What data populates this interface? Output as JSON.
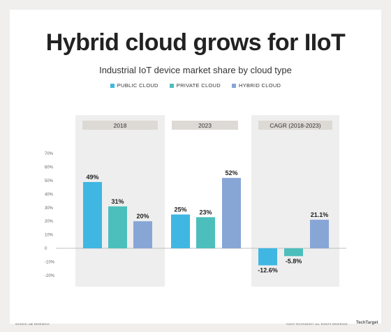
{
  "header": {
    "title": "Hybrid cloud grows for IIoT",
    "subtitle": "Industrial IoT device market share by cloud type"
  },
  "footer": {
    "source": "SOURCE: ABI RESEARCH",
    "copyright": "©2023 TECHTARGET. ALL RIGHTS RESERVED.",
    "brand": "TechTarget"
  },
  "colors": {
    "public": "#3fb7e2",
    "private": "#4cbfbd",
    "hybrid": "#87a6d6",
    "panel": "#eeeeee",
    "header_box": "#dddad6"
  },
  "chart_data": {
    "type": "bar",
    "title": "Hybrid cloud grows for IIoT",
    "subtitle": "Industrial IoT device market share by cloud type",
    "categories": [
      "2018",
      "2023",
      "CAGR (2018-2023)"
    ],
    "series": [
      {
        "name": "PUBLIC CLOUD",
        "values": [
          49,
          25,
          -12.6
        ],
        "labels": [
          "49%",
          "25%",
          "-12.6%"
        ]
      },
      {
        "name": "PRIVATE CLOUD",
        "values": [
          31,
          23,
          -5.8
        ],
        "labels": [
          "31%",
          "23%",
          "-5.8%"
        ]
      },
      {
        "name": "HYBRID CLOUD",
        "values": [
          20,
          52,
          21.1
        ],
        "labels": [
          "20%",
          "52%",
          "21.1%"
        ]
      }
    ],
    "yticks": [
      "70%",
      "60%",
      "50%",
      "40%",
      "30%",
      "20%",
      "10%",
      "0",
      "-10%",
      "-20%"
    ],
    "ytick_values": [
      70,
      60,
      50,
      40,
      30,
      20,
      10,
      0,
      -10,
      -20
    ],
    "ylim": [
      -20,
      70
    ],
    "xlabel": "",
    "ylabel": "",
    "legend_position": "top-center",
    "grid": false
  }
}
